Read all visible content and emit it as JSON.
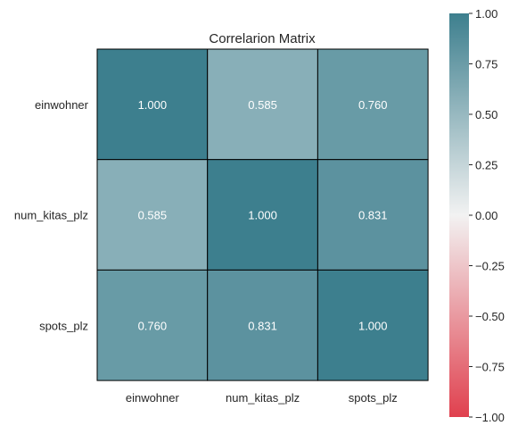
{
  "chart_data": {
    "type": "heatmap",
    "title": "Correlarion Matrix",
    "rows": [
      "einwohner",
      "num_kitas_plz",
      "spots_plz"
    ],
    "columns": [
      "einwohner",
      "num_kitas_plz",
      "spots_plz"
    ],
    "values": [
      [
        1.0,
        0.585,
        0.76
      ],
      [
        0.585,
        1.0,
        0.831
      ],
      [
        0.76,
        0.831,
        1.0
      ]
    ],
    "cell_labels": [
      [
        "1.000",
        "0.585",
        "0.760"
      ],
      [
        "0.585",
        "1.000",
        "0.831"
      ],
      [
        "0.760",
        "0.831",
        "1.000"
      ]
    ],
    "colorbar": {
      "range": [
        -1.0,
        1.0
      ],
      "ticks": [
        1.0,
        0.75,
        0.5,
        0.25,
        0.0,
        -0.25,
        -0.5,
        -0.75,
        -1.0
      ],
      "tick_labels": [
        "1.00",
        "0.75",
        "0.50",
        "0.25",
        "0.00",
        "−0.25",
        "−0.50",
        "−0.75",
        "−1.00"
      ],
      "colors": {
        "low": "#e0404e",
        "mid": "#f2f2f2",
        "high": "#3d7f8e"
      }
    }
  }
}
